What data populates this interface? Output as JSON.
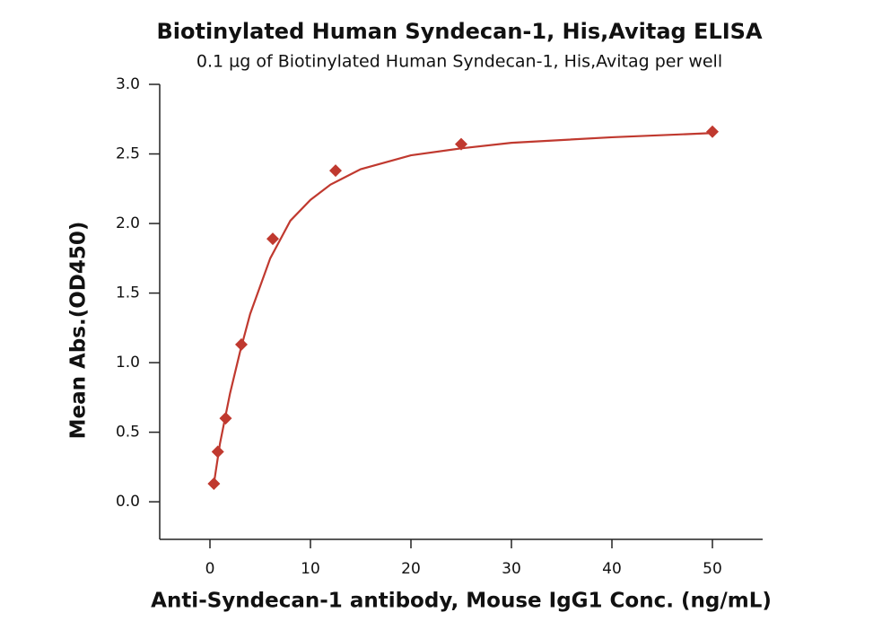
{
  "chart_data": {
    "type": "scatter",
    "title": "Biotinylated Human Syndecan-1, His,Avitag ELISA",
    "subtitle": "0.1 µg of Biotinylated Human Syndecan-1, His,Avitag per well",
    "x_label": "Anti-Syndecan-1 antibody, Mouse IgG1 Conc. (ng/mL)",
    "y_label": "Mean Abs.(OD450)",
    "xlim": [
      -5,
      55
    ],
    "ylim": [
      -0.27,
      3.0
    ],
    "xticks": [
      0,
      10,
      20,
      30,
      40,
      50
    ],
    "yticks": [
      {
        "value": 0,
        "label": "0.0"
      },
      0.5,
      {
        "value": 1,
        "label": "1.0"
      },
      1.5,
      {
        "value": 2,
        "label": "2.0"
      },
      2.5,
      {
        "value": 3,
        "label": "3.0"
      }
    ],
    "series": [
      {
        "color": "#c0392f",
        "x": [
          0.39,
          0.78,
          1.56,
          3.125,
          6.25,
          12.5,
          25,
          50
        ],
        "values": [
          0.13,
          0.36,
          0.6,
          1.13,
          1.89,
          2.38,
          2.57,
          2.66
        ]
      }
    ],
    "fit": {
      "color": "#c0392f",
      "x": [
        0.39,
        1,
        2,
        3,
        4,
        6,
        8,
        10,
        12,
        15,
        20,
        25,
        30,
        40,
        50
      ],
      "values": [
        0.13,
        0.42,
        0.78,
        1.08,
        1.35,
        1.75,
        2.02,
        2.17,
        2.28,
        2.39,
        2.49,
        2.54,
        2.58,
        2.62,
        2.65
      ]
    }
  }
}
